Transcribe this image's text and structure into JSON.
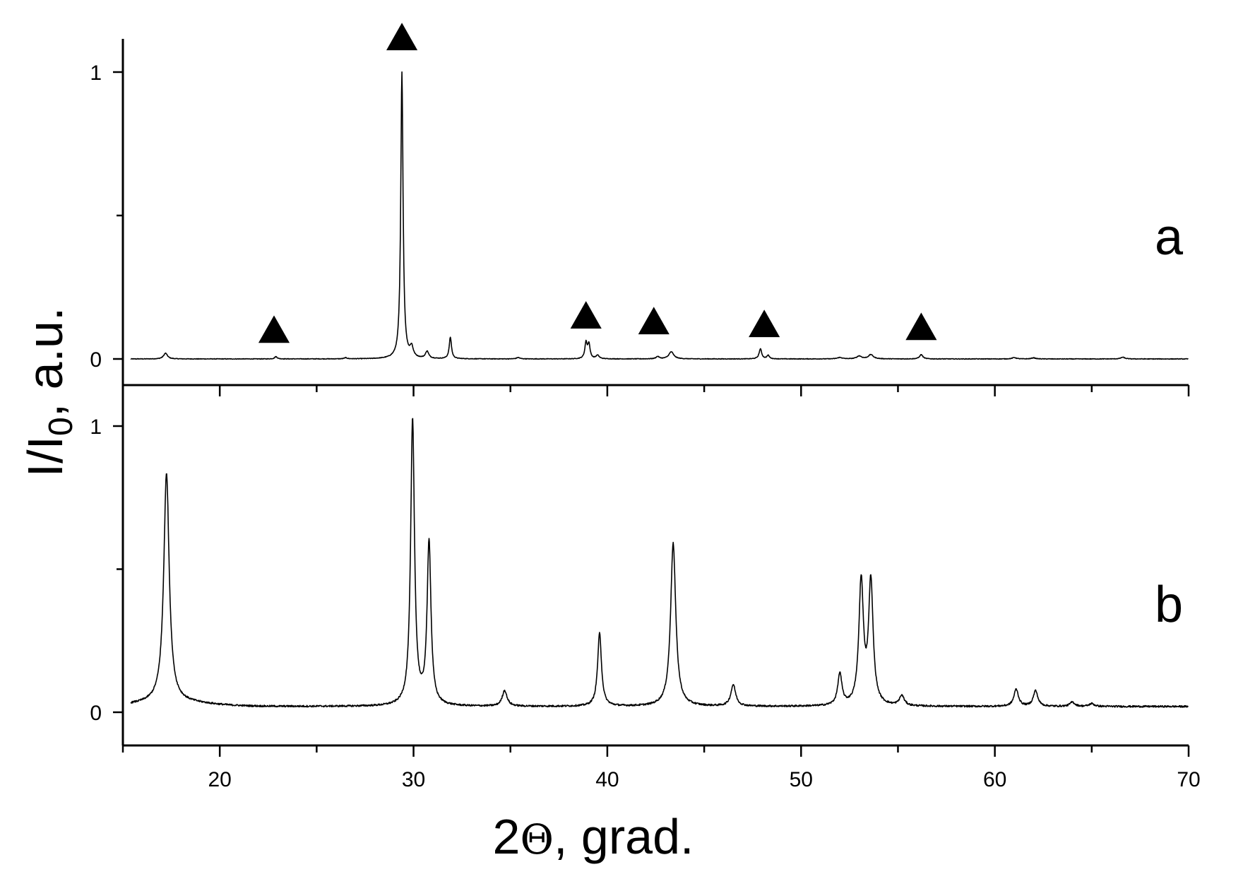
{
  "chart_data": {
    "type": "line",
    "xlabel": {
      "prefix": "2",
      "symbol": "Θ",
      "suffix": ", grad."
    },
    "ylabel": {
      "main": "I/I",
      "sub": "0",
      "suffix": ", a.u."
    },
    "xlim": [
      15,
      70
    ],
    "xticks": [
      20,
      30,
      40,
      50,
      60,
      70
    ],
    "marker_symbol": "triangle",
    "panels": [
      {
        "label": "a",
        "ylim": [
          -0.1,
          1.1
        ],
        "yticks": [
          0,
          1
        ],
        "baseline": 0.0,
        "noise": 0.001,
        "peaks": [
          {
            "x": 17.2,
            "h": 0.02,
            "w": 0.12
          },
          {
            "x": 22.9,
            "h": 0.008,
            "w": 0.08
          },
          {
            "x": 26.5,
            "h": 0.004,
            "w": 0.08
          },
          {
            "x": 29.4,
            "h": 1.0,
            "w": 0.07
          },
          {
            "x": 29.9,
            "h": 0.035,
            "w": 0.1
          },
          {
            "x": 30.7,
            "h": 0.025,
            "w": 0.1
          },
          {
            "x": 31.9,
            "h": 0.075,
            "w": 0.07
          },
          {
            "x": 35.4,
            "h": 0.005,
            "w": 0.1
          },
          {
            "x": 38.9,
            "h": 0.055,
            "w": 0.07
          },
          {
            "x": 39.05,
            "h": 0.05,
            "w": 0.07
          },
          {
            "x": 39.5,
            "h": 0.012,
            "w": 0.1
          },
          {
            "x": 42.6,
            "h": 0.008,
            "w": 0.1
          },
          {
            "x": 43.3,
            "h": 0.025,
            "w": 0.15
          },
          {
            "x": 47.9,
            "h": 0.035,
            "w": 0.08
          },
          {
            "x": 48.3,
            "h": 0.012,
            "w": 0.08
          },
          {
            "x": 52.0,
            "h": 0.005,
            "w": 0.15
          },
          {
            "x": 53.0,
            "h": 0.01,
            "w": 0.15
          },
          {
            "x": 53.6,
            "h": 0.015,
            "w": 0.15
          },
          {
            "x": 56.2,
            "h": 0.015,
            "w": 0.1
          },
          {
            "x": 61.0,
            "h": 0.005,
            "w": 0.12
          },
          {
            "x": 62.0,
            "h": 0.004,
            "w": 0.12
          },
          {
            "x": 66.6,
            "h": 0.006,
            "w": 0.12
          }
        ],
        "markers": [
          {
            "x": 22.8,
            "y": 0.1
          },
          {
            "x": 29.4,
            "y": 1.12
          },
          {
            "x": 38.9,
            "y": 0.15
          },
          {
            "x": 42.4,
            "y": 0.13
          },
          {
            "x": 48.1,
            "y": 0.12
          },
          {
            "x": 56.2,
            "y": 0.11
          }
        ]
      },
      {
        "label": "b",
        "ylim": [
          -0.1,
          1.1
        ],
        "yticks": [
          0,
          1
        ],
        "baseline": 0.02,
        "noise": 0.003,
        "peaks": [
          {
            "x": 17.25,
            "h": 0.8,
            "w": 0.17
          },
          {
            "x": 29.95,
            "h": 1.0,
            "w": 0.12
          },
          {
            "x": 30.8,
            "h": 0.57,
            "w": 0.12
          },
          {
            "x": 34.7,
            "h": 0.055,
            "w": 0.15
          },
          {
            "x": 39.6,
            "h": 0.255,
            "w": 0.12
          },
          {
            "x": 43.4,
            "h": 0.57,
            "w": 0.16
          },
          {
            "x": 46.5,
            "h": 0.075,
            "w": 0.15
          },
          {
            "x": 52.0,
            "h": 0.11,
            "w": 0.13
          },
          {
            "x": 53.1,
            "h": 0.43,
            "w": 0.14
          },
          {
            "x": 53.6,
            "h": 0.43,
            "w": 0.14
          },
          {
            "x": 55.2,
            "h": 0.035,
            "w": 0.15
          },
          {
            "x": 61.1,
            "h": 0.06,
            "w": 0.14
          },
          {
            "x": 62.1,
            "h": 0.055,
            "w": 0.14
          },
          {
            "x": 64.0,
            "h": 0.015,
            "w": 0.15
          },
          {
            "x": 65.0,
            "h": 0.01,
            "w": 0.15
          }
        ],
        "markers": []
      }
    ]
  }
}
